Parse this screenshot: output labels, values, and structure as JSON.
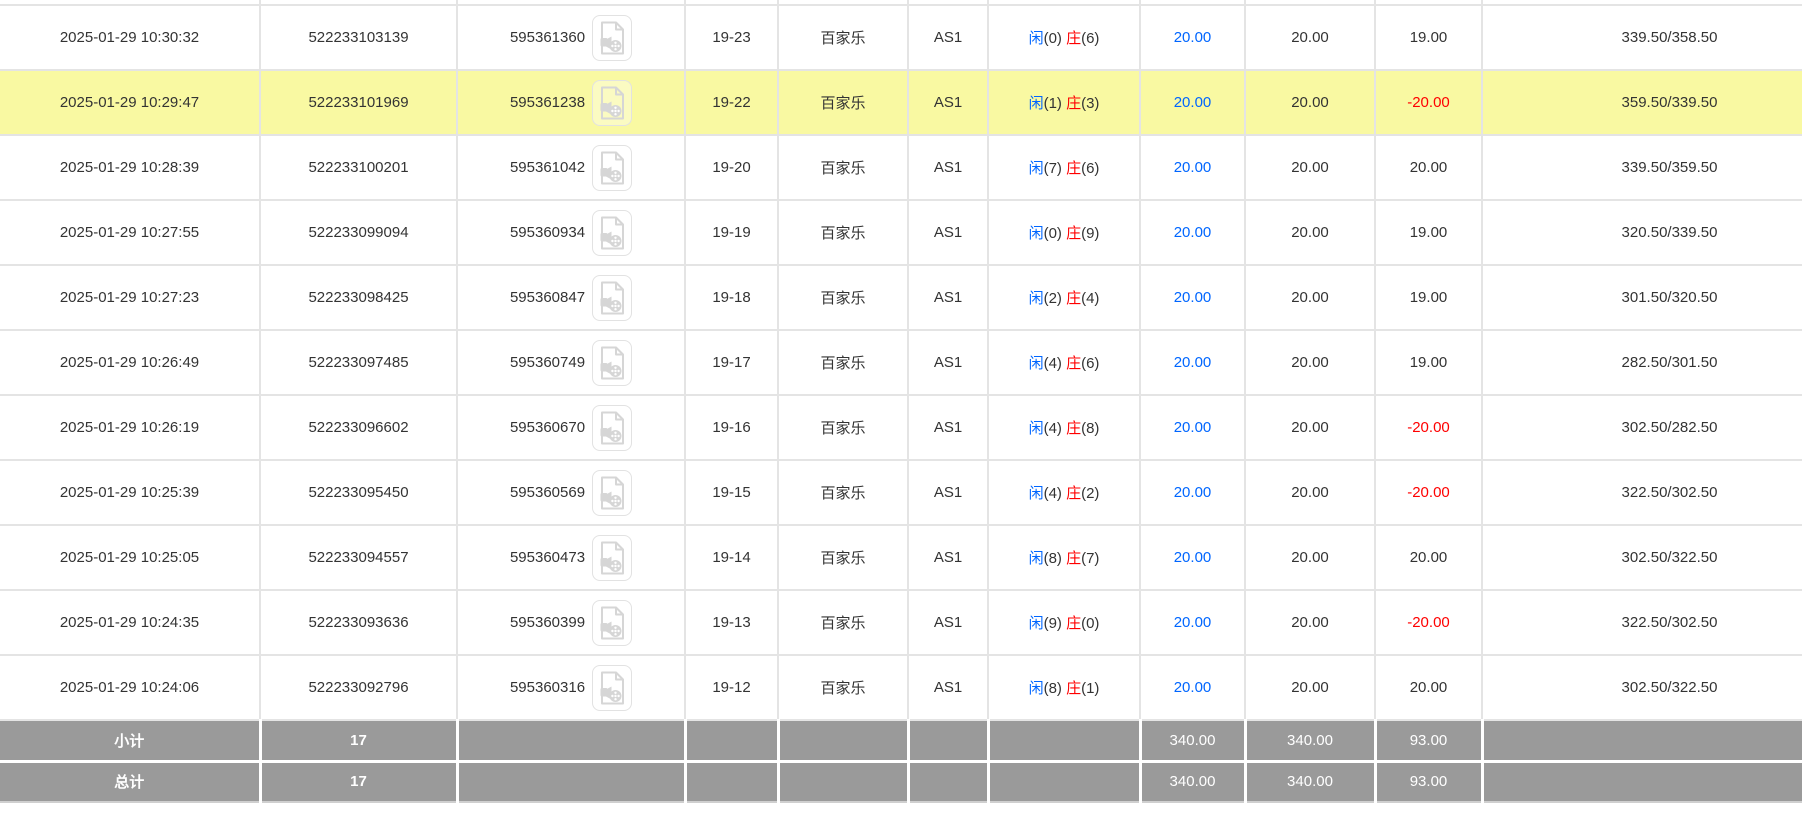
{
  "colors": {
    "highlight_row": "#f9f9a2",
    "totals_row_bg": "#9a9a9a",
    "link_blue": "#0066ff",
    "negative_red": "#ff0000",
    "grid_line": "#e4e4e4"
  },
  "result_labels": {
    "xian": "闲",
    "zhuang": "庄"
  },
  "icons": {
    "video": "video-file-icon"
  },
  "rows": [
    {
      "time": "2025-01-29 10:30:32",
      "order_no": "522233103139",
      "game_no": "595361360",
      "round": "19-23",
      "game": "百家乐",
      "table": "AS1",
      "xian": "0",
      "zhuang": "6",
      "bet": "20.00",
      "valid": "20.00",
      "win_loss": "19.00",
      "balance": "339.50/358.50",
      "highlighted": false
    },
    {
      "time": "2025-01-29 10:29:47",
      "order_no": "522233101969",
      "game_no": "595361238",
      "round": "19-22",
      "game": "百家乐",
      "table": "AS1",
      "xian": "1",
      "zhuang": "3",
      "bet": "20.00",
      "valid": "20.00",
      "win_loss": "-20.00",
      "balance": "359.50/339.50",
      "highlighted": true
    },
    {
      "time": "2025-01-29 10:28:39",
      "order_no": "522233100201",
      "game_no": "595361042",
      "round": "19-20",
      "game": "百家乐",
      "table": "AS1",
      "xian": "7",
      "zhuang": "6",
      "bet": "20.00",
      "valid": "20.00",
      "win_loss": "20.00",
      "balance": "339.50/359.50",
      "highlighted": false
    },
    {
      "time": "2025-01-29 10:27:55",
      "order_no": "522233099094",
      "game_no": "595360934",
      "round": "19-19",
      "game": "百家乐",
      "table": "AS1",
      "xian": "0",
      "zhuang": "9",
      "bet": "20.00",
      "valid": "20.00",
      "win_loss": "19.00",
      "balance": "320.50/339.50",
      "highlighted": false
    },
    {
      "time": "2025-01-29 10:27:23",
      "order_no": "522233098425",
      "game_no": "595360847",
      "round": "19-18",
      "game": "百家乐",
      "table": "AS1",
      "xian": "2",
      "zhuang": "4",
      "bet": "20.00",
      "valid": "20.00",
      "win_loss": "19.00",
      "balance": "301.50/320.50",
      "highlighted": false
    },
    {
      "time": "2025-01-29 10:26:49",
      "order_no": "522233097485",
      "game_no": "595360749",
      "round": "19-17",
      "game": "百家乐",
      "table": "AS1",
      "xian": "4",
      "zhuang": "6",
      "bet": "20.00",
      "valid": "20.00",
      "win_loss": "19.00",
      "balance": "282.50/301.50",
      "highlighted": false
    },
    {
      "time": "2025-01-29 10:26:19",
      "order_no": "522233096602",
      "game_no": "595360670",
      "round": "19-16",
      "game": "百家乐",
      "table": "AS1",
      "xian": "4",
      "zhuang": "8",
      "bet": "20.00",
      "valid": "20.00",
      "win_loss": "-20.00",
      "balance": "302.50/282.50",
      "highlighted": false
    },
    {
      "time": "2025-01-29 10:25:39",
      "order_no": "522233095450",
      "game_no": "595360569",
      "round": "19-15",
      "game": "百家乐",
      "table": "AS1",
      "xian": "4",
      "zhuang": "2",
      "bet": "20.00",
      "valid": "20.00",
      "win_loss": "-20.00",
      "balance": "322.50/302.50",
      "highlighted": false
    },
    {
      "time": "2025-01-29 10:25:05",
      "order_no": "522233094557",
      "game_no": "595360473",
      "round": "19-14",
      "game": "百家乐",
      "table": "AS1",
      "xian": "8",
      "zhuang": "7",
      "bet": "20.00",
      "valid": "20.00",
      "win_loss": "20.00",
      "balance": "302.50/322.50",
      "highlighted": false
    },
    {
      "time": "2025-01-29 10:24:35",
      "order_no": "522233093636",
      "game_no": "595360399",
      "round": "19-13",
      "game": "百家乐",
      "table": "AS1",
      "xian": "9",
      "zhuang": "0",
      "bet": "20.00",
      "valid": "20.00",
      "win_loss": "-20.00",
      "balance": "322.50/302.50",
      "highlighted": false
    },
    {
      "time": "2025-01-29 10:24:06",
      "order_no": "522233092796",
      "game_no": "595360316",
      "round": "19-12",
      "game": "百家乐",
      "table": "AS1",
      "xian": "8",
      "zhuang": "1",
      "bet": "20.00",
      "valid": "20.00",
      "win_loss": "20.00",
      "balance": "302.50/322.50",
      "highlighted": false
    }
  ],
  "totals": [
    {
      "label": "小计",
      "count": "17",
      "bet": "340.00",
      "valid": "340.00",
      "win_loss": "93.00"
    },
    {
      "label": "总计",
      "count": "17",
      "bet": "340.00",
      "valid": "340.00",
      "win_loss": "93.00"
    }
  ]
}
